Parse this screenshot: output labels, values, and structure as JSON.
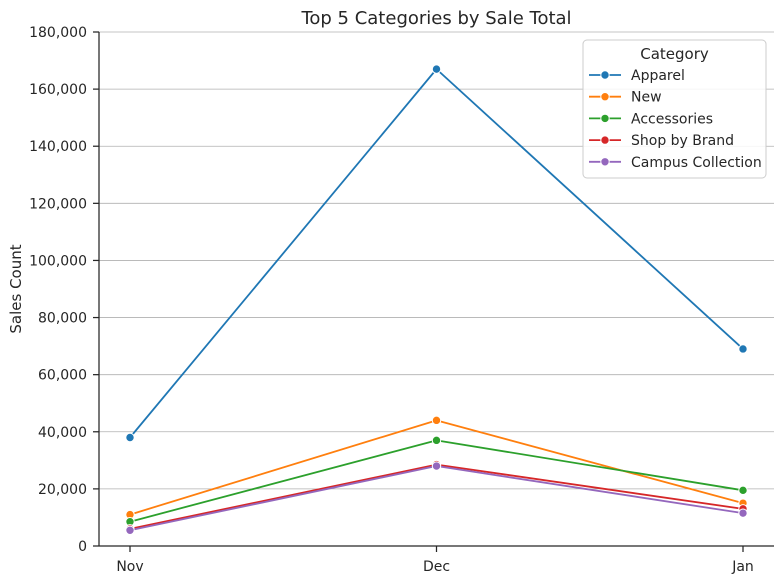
{
  "chart_data": {
    "type": "line",
    "title": "Top 5 Categories by Sale Total",
    "xlabel": "",
    "ylabel": "Sales Count",
    "categories": [
      "Nov",
      "Dec",
      "Jan"
    ],
    "ylim": [
      0,
      180000
    ],
    "yticks": [
      0,
      20000,
      40000,
      60000,
      80000,
      100000,
      120000,
      140000,
      160000,
      180000
    ],
    "ytick_labels": [
      "0",
      "20,000",
      "40,000",
      "60,000",
      "80,000",
      "100,000",
      "120,000",
      "140,000",
      "160,000",
      "180,000"
    ],
    "grid": "horizontal",
    "legend": {
      "title": "Category",
      "placement": "top-right"
    },
    "series": [
      {
        "name": "Apparel",
        "color": "#1f77b4",
        "values": [
          38000,
          167000,
          69000
        ]
      },
      {
        "name": "New",
        "color": "#ff7f0e",
        "values": [
          11000,
          44000,
          15000
        ]
      },
      {
        "name": "Accessories",
        "color": "#2ca02c",
        "values": [
          8500,
          37000,
          19500
        ]
      },
      {
        "name": "Shop by Brand",
        "color": "#d62728",
        "values": [
          6000,
          28500,
          13000
        ]
      },
      {
        "name": "Campus Collection",
        "color": "#9467bd",
        "values": [
          5500,
          28000,
          11500
        ]
      }
    ]
  }
}
